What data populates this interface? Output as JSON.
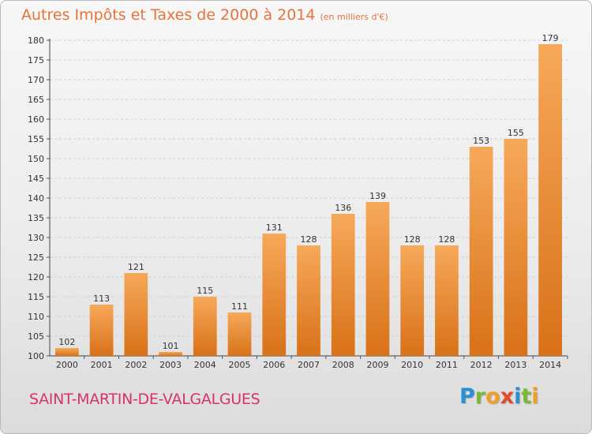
{
  "header": {
    "title": "Autres Impôts et Taxes de 2000 à 2014",
    "subtitle": "(en milliers d'€)"
  },
  "footer": {
    "commune": "SAINT-MARTIN-DE-VALGALGUES",
    "logo_letters": [
      "P",
      "r",
      "o",
      "x",
      "i",
      "t",
      "i"
    ],
    "logo_colors": [
      "#2b8fd4",
      "#79b935",
      "#f0a020",
      "#e24a2a",
      "#2b8fd4",
      "#79b935",
      "#f0a020"
    ]
  },
  "chart_data": {
    "type": "bar",
    "categories": [
      "2000",
      "2001",
      "2002",
      "2003",
      "2004",
      "2005",
      "2006",
      "2007",
      "2008",
      "2009",
      "2010",
      "2011",
      "2012",
      "2013",
      "2014"
    ],
    "values": [
      102,
      113,
      121,
      101,
      115,
      111,
      131,
      128,
      136,
      139,
      128,
      128,
      153,
      155,
      179
    ],
    "ylim": [
      100,
      180
    ],
    "yticks": [
      100,
      105,
      110,
      115,
      120,
      125,
      130,
      135,
      140,
      145,
      150,
      155,
      160,
      165,
      170,
      175,
      180
    ],
    "grid": true,
    "data_labels": true,
    "bar_color_top": "#f6a95a",
    "bar_color_bottom": "#d97118"
  }
}
